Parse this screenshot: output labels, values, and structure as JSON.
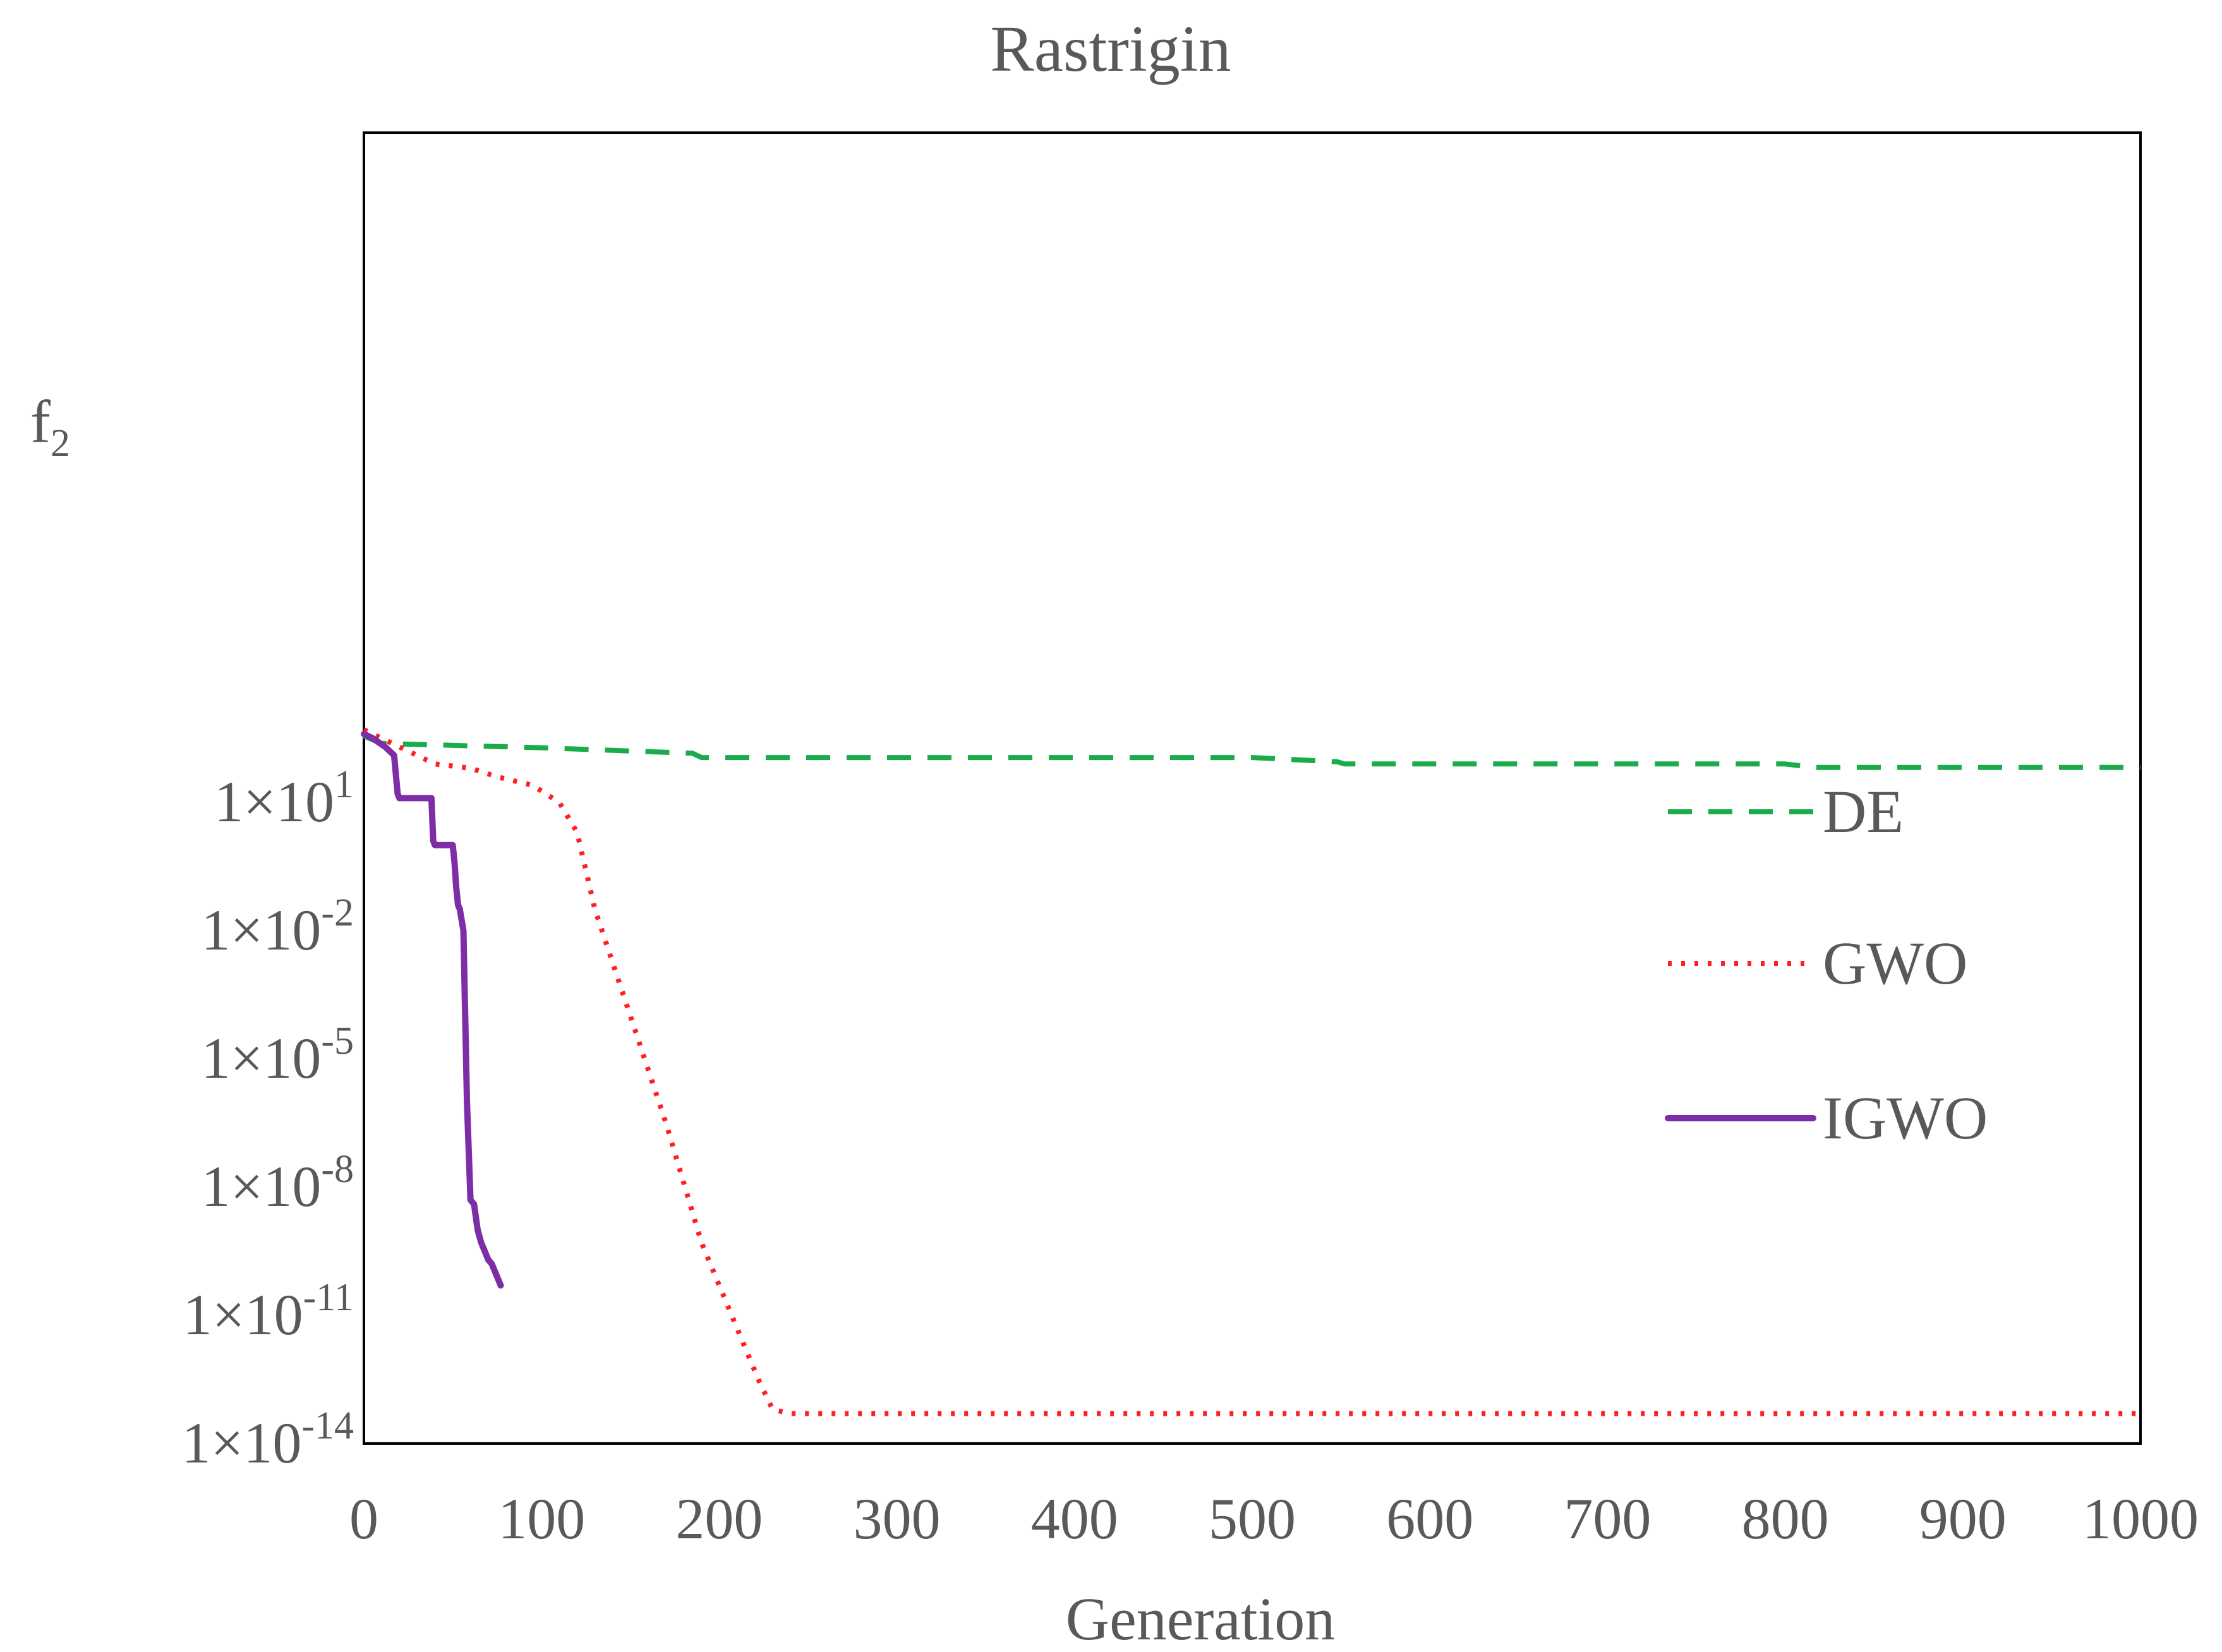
{
  "chart_data": {
    "type": "line",
    "title": "Rastrigin",
    "xlabel": "Generation",
    "ylabel": "f",
    "ylabel_subscript": "2",
    "xlim": [
      0,
      1000
    ],
    "ylim_log10": [
      -14,
      16.67
    ],
    "yscale": "log",
    "x_ticks": [
      0,
      100,
      200,
      300,
      400,
      500,
      600,
      700,
      800,
      900,
      1000
    ],
    "x_tick_labels": [
      "0",
      "100",
      "200",
      "300",
      "400",
      "500",
      "600",
      "700",
      "800",
      "900",
      "1000"
    ],
    "y_ticks_log10": [
      1,
      -2,
      -5,
      -8,
      -11,
      -14
    ],
    "y_tick_labels": [
      {
        "mantissa": "1×10",
        "exponent": "1"
      },
      {
        "mantissa": "1×10",
        "exponent": "-2"
      },
      {
        "mantissa": "1×10",
        "exponent": "-5"
      },
      {
        "mantissa": "1×10",
        "exponent": "-8"
      },
      {
        "mantissa": "1×10",
        "exponent": "-11"
      },
      {
        "mantissa": "1×10",
        "exponent": "-14"
      }
    ],
    "grid": false,
    "legend_position": "right-center",
    "series": [
      {
        "name": "DE",
        "color": "#1aab4b",
        "style": "dashed",
        "x": [
          0,
          10,
          100,
          185,
          190,
          500,
          548,
          552,
          800,
          810,
          815,
          1000
        ],
        "log10_y": [
          2.55,
          2.38,
          2.28,
          2.15,
          2.05,
          2.05,
          1.95,
          1.9,
          1.9,
          1.85,
          1.82,
          1.82
        ]
      },
      {
        "name": "GWO",
        "color": "#ff1f1f",
        "style": "dotted",
        "x": [
          0,
          20,
          40,
          60,
          75,
          95,
          110,
          120,
          130,
          150,
          170,
          190,
          210,
          222,
          230,
          240,
          245,
          400,
          1000
        ],
        "log10_y": [
          2.7,
          2.3,
          1.9,
          1.8,
          1.6,
          1.4,
          1.0,
          0.3,
          -1.5,
          -4.0,
          -6.5,
          -9.3,
          -11.3,
          -12.5,
          -13.2,
          -13.3,
          -13.3,
          -13.3,
          -13.3
        ]
      },
      {
        "name": "IGWO",
        "color": "#7d2ea7",
        "style": "solid",
        "x": [
          0,
          5,
          12,
          17,
          19,
          20,
          38,
          39,
          40,
          50,
          51,
          52,
          53,
          54,
          56,
          58,
          60,
          62,
          64,
          66,
          68,
          70,
          72,
          74,
          76,
          77
        ],
        "log10_y": [
          2.6,
          2.5,
          2.3,
          2.1,
          1.2,
          1.1,
          1.1,
          0.1,
          0.0,
          0.0,
          -0.4,
          -1.0,
          -1.4,
          -1.5,
          -2.0,
          -6.0,
          -8.3,
          -8.4,
          -9.0,
          -9.3,
          -9.5,
          -9.7,
          -9.8,
          -10.0,
          -10.2,
          -10.3
        ]
      }
    ]
  }
}
